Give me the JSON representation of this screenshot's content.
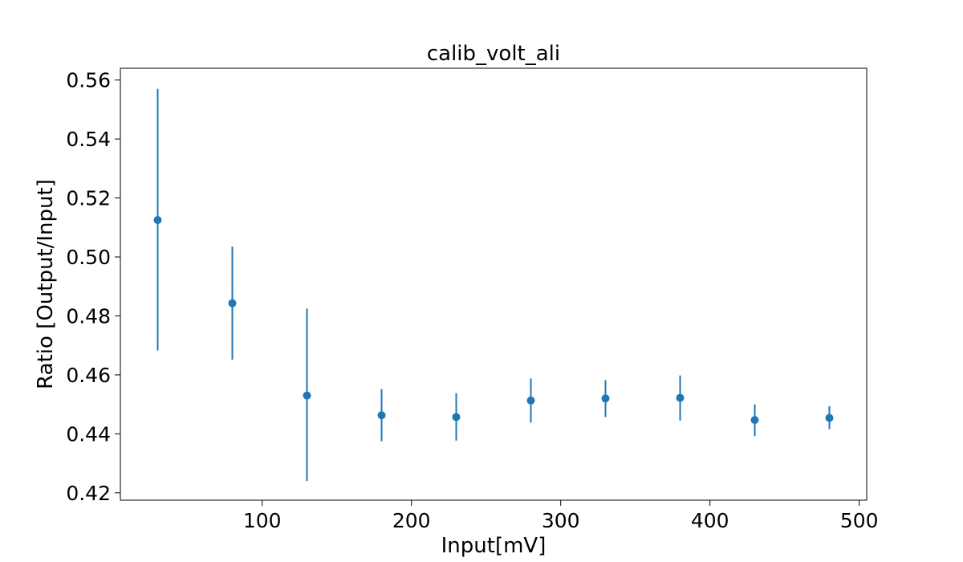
{
  "chart_data": {
    "type": "scatter",
    "title": "calib_volt_ali",
    "xlabel": "Input[mV]",
    "ylabel": "Ratio [Output/Input]",
    "xlim": [
      5,
      505
    ],
    "ylim": [
      0.4175,
      0.564
    ],
    "xticks": [
      100,
      200,
      300,
      400,
      500
    ],
    "yticks": [
      0.42,
      0.44,
      0.46,
      0.48,
      0.5,
      0.52,
      0.54,
      0.56
    ],
    "ytick_labels": [
      "0.42",
      "0.44",
      "0.46",
      "0.48",
      "0.50",
      "0.52",
      "0.54",
      "0.56"
    ],
    "grid": false,
    "color": "#1f77b4",
    "points": [
      {
        "x": 30,
        "y": 0.5125,
        "ylow": 0.4683,
        "yhigh": 0.557
      },
      {
        "x": 80,
        "y": 0.4843,
        "ylow": 0.4652,
        "yhigh": 0.5035
      },
      {
        "x": 130,
        "y": 0.453,
        "ylow": 0.424,
        "yhigh": 0.4825
      },
      {
        "x": 180,
        "y": 0.4463,
        "ylow": 0.4375,
        "yhigh": 0.4552
      },
      {
        "x": 230,
        "y": 0.4457,
        "ylow": 0.4377,
        "yhigh": 0.4538
      },
      {
        "x": 280,
        "y": 0.4513,
        "ylow": 0.4438,
        "yhigh": 0.4588
      },
      {
        "x": 330,
        "y": 0.452,
        "ylow": 0.4457,
        "yhigh": 0.4582
      },
      {
        "x": 380,
        "y": 0.4522,
        "ylow": 0.4445,
        "yhigh": 0.4598
      },
      {
        "x": 430,
        "y": 0.4447,
        "ylow": 0.4392,
        "yhigh": 0.45
      },
      {
        "x": 480,
        "y": 0.4454,
        "ylow": 0.4416,
        "yhigh": 0.4494
      }
    ]
  }
}
